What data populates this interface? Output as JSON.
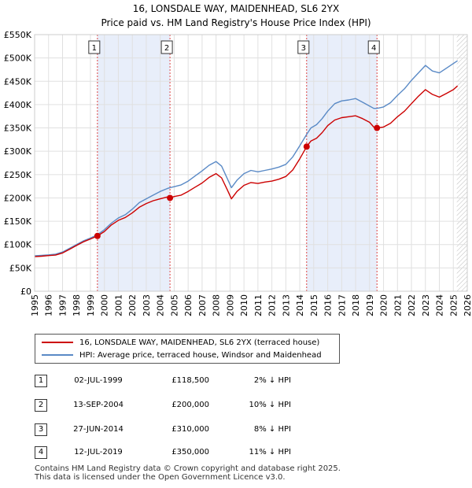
{
  "header": {
    "title_line1": "16, LONSDALE WAY, MAIDENHEAD, SL6 2YX",
    "title_line2": "Price paid vs. HM Land Registry's House Price Index (HPI)"
  },
  "chart_data": {
    "type": "line",
    "title": "16, LONSDALE WAY, MAIDENHEAD, SL6 2YX - Price paid vs. HM Land Registry's House Price Index (HPI)",
    "xlim": [
      1995,
      2026
    ],
    "ylim": [
      0,
      550000
    ],
    "y_ticks": [
      {
        "value": 0,
        "label": "£0"
      },
      {
        "value": 50000,
        "label": "£50K"
      },
      {
        "value": 100000,
        "label": "£100K"
      },
      {
        "value": 150000,
        "label": "£150K"
      },
      {
        "value": 200000,
        "label": "£200K"
      },
      {
        "value": 250000,
        "label": "£250K"
      },
      {
        "value": 300000,
        "label": "£300K"
      },
      {
        "value": 350000,
        "label": "£350K"
      },
      {
        "value": 400000,
        "label": "£400K"
      },
      {
        "value": 450000,
        "label": "£450K"
      },
      {
        "value": 500000,
        "label": "£500K"
      },
      {
        "value": 550000,
        "label": "£550K"
      }
    ],
    "x_ticks": [
      "1995",
      "1996",
      "1997",
      "1998",
      "1999",
      "2000",
      "2001",
      "2002",
      "2003",
      "2004",
      "2005",
      "2006",
      "2007",
      "2008",
      "2009",
      "2010",
      "2011",
      "2012",
      "2013",
      "2014",
      "2015",
      "2016",
      "2017",
      "2018",
      "2019",
      "2020",
      "2021",
      "2022",
      "2023",
      "2024",
      "2025",
      "2026"
    ],
    "shaded_periods": [
      [
        1999.5,
        2004.7
      ],
      [
        2014.49,
        2019.53
      ]
    ],
    "future_hatch_from": 2025.25,
    "colors": {
      "property": "#cc0000",
      "hpi": "#5a8ac6",
      "shade": "#e8eefa",
      "vline": "#dd4444"
    },
    "series": [
      {
        "name": "16, LONSDALE WAY, MAIDENHEAD, SL6 2YX (terraced house)",
        "color": "#cc0000",
        "points": [
          [
            1995.0,
            74000
          ],
          [
            1995.5,
            75000
          ],
          [
            1996.0,
            76500
          ],
          [
            1996.5,
            77500
          ],
          [
            1997.0,
            82000
          ],
          [
            1997.5,
            90000
          ],
          [
            1998.0,
            98000
          ],
          [
            1998.5,
            106000
          ],
          [
            1999.0,
            112000
          ],
          [
            1999.5,
            118500
          ],
          [
            2000.0,
            128000
          ],
          [
            2000.5,
            142000
          ],
          [
            2001.0,
            152000
          ],
          [
            2001.5,
            158000
          ],
          [
            2002.0,
            168000
          ],
          [
            2002.5,
            180000
          ],
          [
            2003.0,
            188000
          ],
          [
            2003.5,
            194000
          ],
          [
            2004.0,
            198000
          ],
          [
            2004.5,
            202000
          ],
          [
            2004.7,
            200000
          ],
          [
            2005.0,
            203000
          ],
          [
            2005.5,
            206000
          ],
          [
            2006.0,
            214000
          ],
          [
            2006.5,
            223000
          ],
          [
            2007.0,
            232000
          ],
          [
            2007.5,
            244000
          ],
          [
            2008.0,
            252000
          ],
          [
            2008.4,
            243000
          ],
          [
            2008.8,
            218000
          ],
          [
            2009.1,
            198000
          ],
          [
            2009.5,
            214000
          ],
          [
            2010.0,
            227000
          ],
          [
            2010.5,
            233000
          ],
          [
            2011.0,
            231000
          ],
          [
            2011.5,
            234000
          ],
          [
            2012.0,
            236000
          ],
          [
            2012.5,
            240000
          ],
          [
            2013.0,
            246000
          ],
          [
            2013.5,
            260000
          ],
          [
            2014.0,
            284000
          ],
          [
            2014.49,
            310000
          ],
          [
            2014.8,
            322000
          ],
          [
            2015.2,
            328000
          ],
          [
            2015.6,
            340000
          ],
          [
            2016.0,
            355000
          ],
          [
            2016.5,
            367000
          ],
          [
            2017.0,
            372000
          ],
          [
            2017.5,
            374000
          ],
          [
            2018.0,
            376000
          ],
          [
            2018.5,
            370000
          ],
          [
            2019.0,
            362000
          ],
          [
            2019.3,
            352000
          ],
          [
            2019.53,
            350000
          ],
          [
            2020.0,
            352000
          ],
          [
            2020.5,
            360000
          ],
          [
            2021.0,
            374000
          ],
          [
            2021.5,
            386000
          ],
          [
            2022.0,
            402000
          ],
          [
            2022.5,
            418000
          ],
          [
            2023.0,
            432000
          ],
          [
            2023.5,
            422000
          ],
          [
            2024.0,
            416000
          ],
          [
            2024.5,
            424000
          ],
          [
            2025.0,
            432000
          ],
          [
            2025.3,
            440000
          ]
        ]
      },
      {
        "name": "HPI: Average price, terraced house, Windsor and Maidenhead",
        "color": "#5a8ac6",
        "points": [
          [
            1995.0,
            76000
          ],
          [
            1995.5,
            77000
          ],
          [
            1996.0,
            78000
          ],
          [
            1996.5,
            79500
          ],
          [
            1997.0,
            84000
          ],
          [
            1997.5,
            92000
          ],
          [
            1998.0,
            100000
          ],
          [
            1998.5,
            108000
          ],
          [
            1999.0,
            114000
          ],
          [
            1999.5,
            121000
          ],
          [
            2000.0,
            132000
          ],
          [
            2000.5,
            146000
          ],
          [
            2001.0,
            157000
          ],
          [
            2001.5,
            164000
          ],
          [
            2002.0,
            176000
          ],
          [
            2002.5,
            190000
          ],
          [
            2003.0,
            198000
          ],
          [
            2003.5,
            206000
          ],
          [
            2004.0,
            214000
          ],
          [
            2004.5,
            220000
          ],
          [
            2004.7,
            222000
          ],
          [
            2005.0,
            224000
          ],
          [
            2005.5,
            228000
          ],
          [
            2006.0,
            236000
          ],
          [
            2006.5,
            247000
          ],
          [
            2007.0,
            258000
          ],
          [
            2007.5,
            270000
          ],
          [
            2008.0,
            278000
          ],
          [
            2008.4,
            268000
          ],
          [
            2008.8,
            242000
          ],
          [
            2009.1,
            222000
          ],
          [
            2009.5,
            238000
          ],
          [
            2010.0,
            252000
          ],
          [
            2010.5,
            259000
          ],
          [
            2011.0,
            256000
          ],
          [
            2011.5,
            259000
          ],
          [
            2012.0,
            262000
          ],
          [
            2012.5,
            266000
          ],
          [
            2013.0,
            272000
          ],
          [
            2013.5,
            288000
          ],
          [
            2014.0,
            312000
          ],
          [
            2014.49,
            336000
          ],
          [
            2014.8,
            350000
          ],
          [
            2015.2,
            357000
          ],
          [
            2015.6,
            370000
          ],
          [
            2016.0,
            386000
          ],
          [
            2016.5,
            402000
          ],
          [
            2017.0,
            408000
          ],
          [
            2017.5,
            410000
          ],
          [
            2018.0,
            413000
          ],
          [
            2018.5,
            405000
          ],
          [
            2019.0,
            397000
          ],
          [
            2019.3,
            392000
          ],
          [
            2019.53,
            392000
          ],
          [
            2020.0,
            395000
          ],
          [
            2020.5,
            404000
          ],
          [
            2021.0,
            420000
          ],
          [
            2021.5,
            434000
          ],
          [
            2022.0,
            452000
          ],
          [
            2022.5,
            468000
          ],
          [
            2023.0,
            484000
          ],
          [
            2023.5,
            472000
          ],
          [
            2024.0,
            468000
          ],
          [
            2024.5,
            478000
          ],
          [
            2025.0,
            488000
          ],
          [
            2025.3,
            494000
          ]
        ]
      }
    ],
    "sale_markers": [
      {
        "label": "1",
        "x": 1999.5,
        "y": 118500
      },
      {
        "label": "2",
        "x": 2004.7,
        "y": 200000
      },
      {
        "label": "3",
        "x": 2014.49,
        "y": 310000
      },
      {
        "label": "4",
        "x": 2019.53,
        "y": 350000
      }
    ]
  },
  "legend": {
    "property_label": "16, LONSDALE WAY, MAIDENHEAD, SL6 2YX (terraced house)",
    "hpi_label": "HPI: Average price, terraced house, Windsor and Maidenhead"
  },
  "transactions": [
    {
      "num": "1",
      "date": "02-JUL-1999",
      "price": "£118,500",
      "hpi": "2% ↓ HPI"
    },
    {
      "num": "2",
      "date": "13-SEP-2004",
      "price": "£200,000",
      "hpi": "10% ↓ HPI"
    },
    {
      "num": "3",
      "date": "27-JUN-2014",
      "price": "£310,000",
      "hpi": "8% ↓ HPI"
    },
    {
      "num": "4",
      "date": "12-JUL-2019",
      "price": "£350,000",
      "hpi": "11% ↓ HPI"
    }
  ],
  "footer": {
    "line1": "Contains HM Land Registry data © Crown copyright and database right 2025.",
    "line2": "This data is licensed under the Open Government Licence v3.0."
  }
}
